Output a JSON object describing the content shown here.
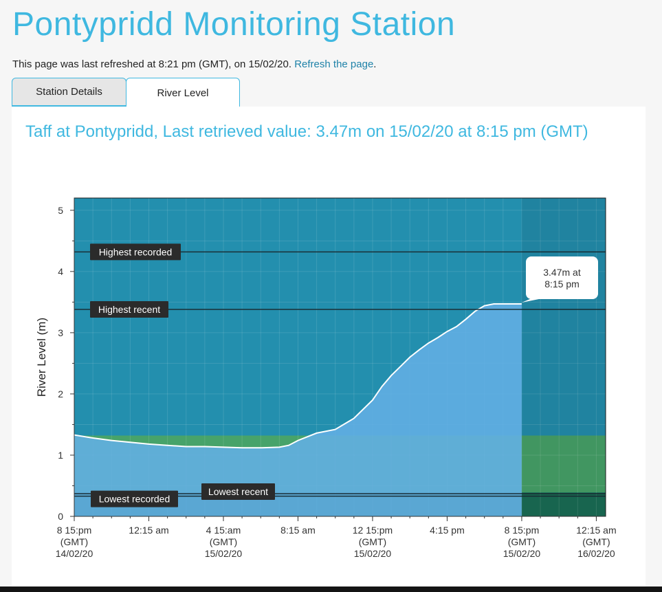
{
  "page": {
    "title": "Pontypridd Monitoring Station",
    "refresh_text": "This page was last refreshed at 8:21 pm (GMT), on 15/02/20.",
    "refresh_link": "Refresh the page",
    "refresh_suffix": "."
  },
  "tabs": [
    {
      "label": "Station Details",
      "active": false
    },
    {
      "label": "River Level",
      "active": true
    }
  ],
  "panel": {
    "heading": "Taff at Pontypridd, Last retrieved value: 3.47m on 15/02/20 at 8:15 pm (GMT)"
  },
  "colors": {
    "title": "#3fb8e0",
    "plot_background": "#238fae",
    "water_fill": "#63afe5",
    "normal_band": "#47a36a",
    "low_band": "#1b6e56",
    "line": "#ffffff",
    "label_box": "#2b2b2b"
  },
  "chart_data": {
    "type": "area",
    "ylabel": "River Level (m)",
    "ylim": [
      0,
      5.2
    ],
    "yticks": [
      "0",
      "1",
      "2",
      "3",
      "4",
      "5"
    ],
    "xlim_hours": [
      0,
      28.5
    ],
    "xticks": [
      {
        "h": 0,
        "label": [
          "8 15:pm",
          "(GMT)",
          "14/02/20"
        ]
      },
      {
        "h": 4,
        "label": [
          "12:15 am"
        ]
      },
      {
        "h": 8,
        "label": [
          "4 15:am",
          "(GMT)",
          "15/02/20"
        ]
      },
      {
        "h": 12,
        "label": [
          "8:15 am"
        ]
      },
      {
        "h": 16,
        "label": [
          "12 15:pm",
          "(GMT)",
          "15/02/20"
        ]
      },
      {
        "h": 20,
        "label": [
          "4:15 pm"
        ]
      },
      {
        "h": 24,
        "label": [
          "8 15:pm",
          "(GMT)",
          "15/02/20"
        ]
      },
      {
        "h": 28,
        "label": [
          "12:15 am",
          "(GMT)",
          "16/02/20"
        ]
      }
    ],
    "series": [
      {
        "x_hours": [
          0,
          1,
          2,
          3,
          4,
          5,
          6,
          7,
          8,
          9,
          10,
          11,
          11.5,
          12,
          13,
          14,
          15,
          16,
          16.5,
          17,
          17.5,
          18,
          18.5,
          19,
          19.5,
          20,
          20.5,
          21,
          21.5,
          22,
          22.5,
          23,
          23.5,
          24
        ],
        "values": [
          1.33,
          1.28,
          1.24,
          1.21,
          1.18,
          1.16,
          1.14,
          1.14,
          1.13,
          1.12,
          1.12,
          1.13,
          1.16,
          1.24,
          1.36,
          1.42,
          1.6,
          1.9,
          2.12,
          2.3,
          2.45,
          2.6,
          2.72,
          2.83,
          2.92,
          3.02,
          3.1,
          3.22,
          3.35,
          3.44,
          3.47,
          3.47,
          3.47,
          3.47
        ]
      }
    ],
    "now_hour": 24,
    "thresholds": [
      {
        "name": "Highest recorded",
        "value": 4.32
      },
      {
        "name": "Highest recent",
        "value": 3.38
      },
      {
        "name": "Lowest recorded",
        "value": 0.33
      },
      {
        "name": "Lowest recent",
        "value": 0.37
      }
    ],
    "normal_band": [
      0.39,
      1.32
    ],
    "tooltip": [
      "3.47m at",
      "8:15 pm"
    ],
    "grid": true
  }
}
